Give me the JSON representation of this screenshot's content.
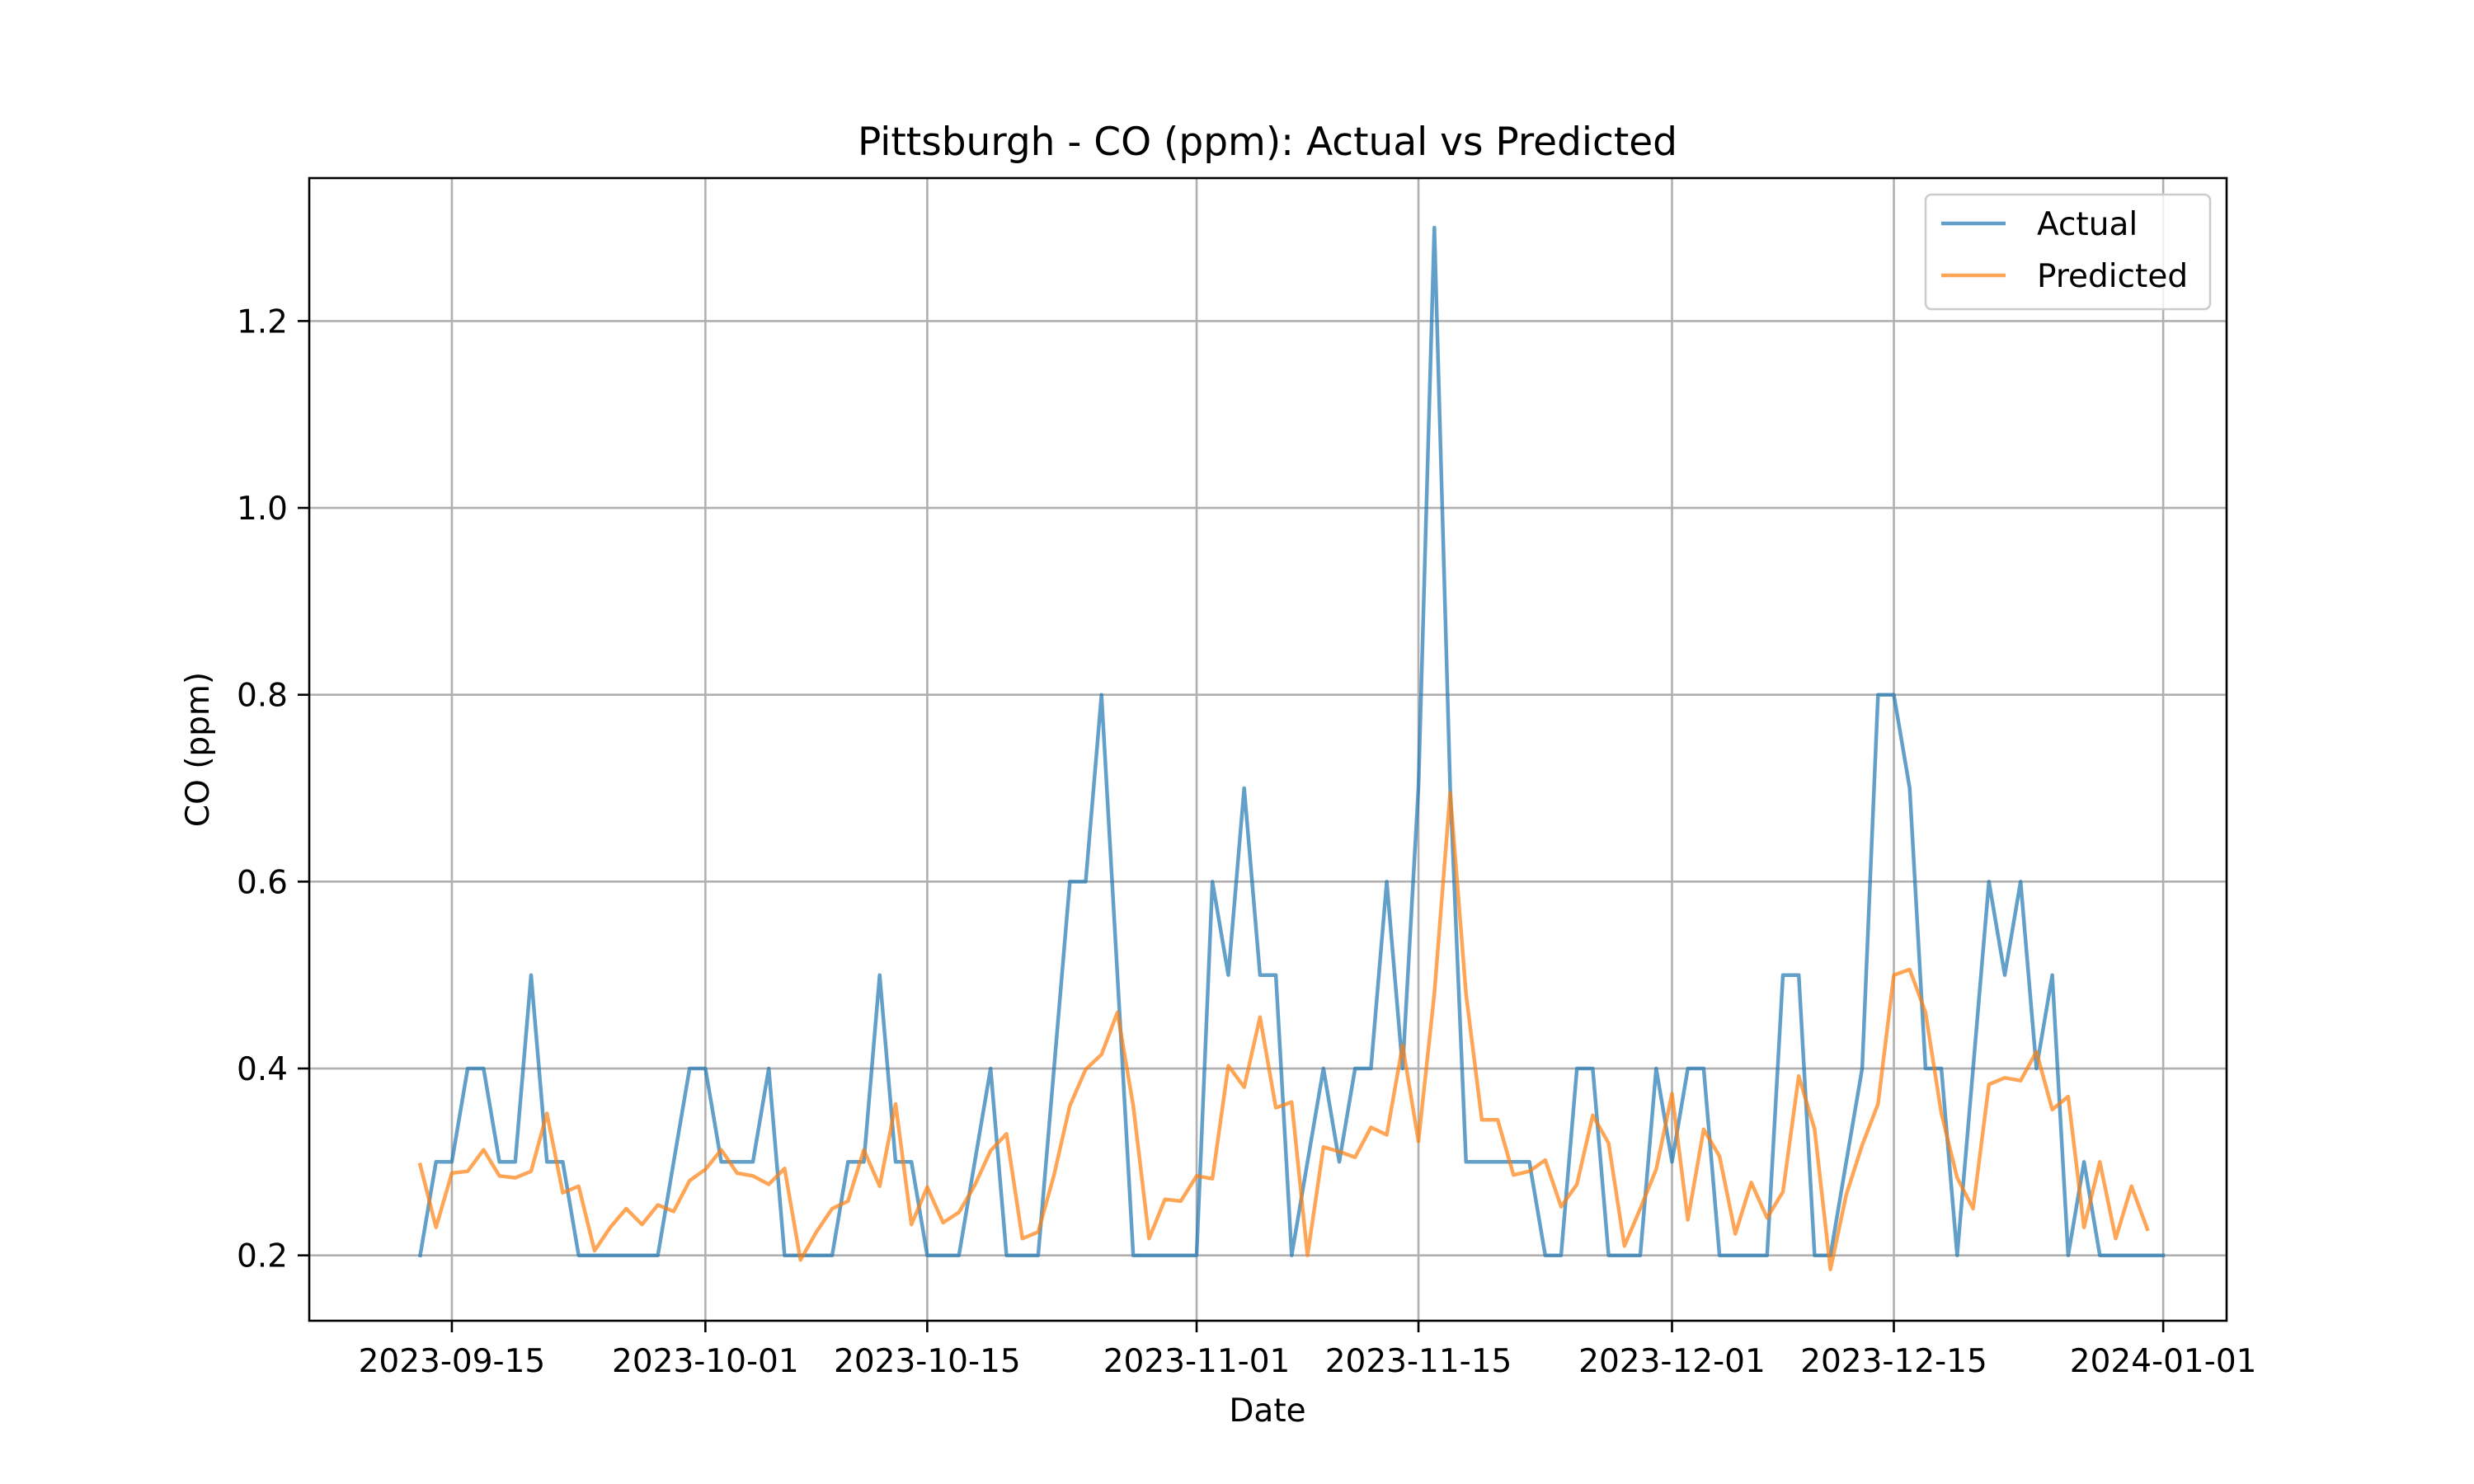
{
  "chart_data": {
    "type": "line",
    "title": "Pittsburgh - CO (ppm): Actual vs Predicted",
    "xlabel": "Date",
    "ylabel": "CO (ppm)",
    "x_start": "2023-09-13",
    "xlim": [
      "2023-09-06",
      "2024-01-05"
    ],
    "ylim": [
      0.13,
      1.353
    ],
    "x_ticks": [
      "2023-09-15",
      "2023-10-01",
      "2023-10-15",
      "2023-11-01",
      "2023-11-15",
      "2023-12-01",
      "2023-12-15",
      "2024-01-01"
    ],
    "y_ticks": [
      0.2,
      0.4,
      0.6,
      0.8,
      1.0,
      1.2
    ],
    "y_tick_labels": [
      "0.2",
      "0.4",
      "0.6",
      "0.8",
      "1.0",
      "1.2"
    ],
    "grid": true,
    "legend_position": "upper right",
    "series": [
      {
        "name": "Actual",
        "color": "#1f77b4",
        "values": [
          0.2,
          0.3,
          0.3,
          0.4,
          0.4,
          0.3,
          0.3,
          0.5,
          0.3,
          0.3,
          0.2,
          0.2,
          0.2,
          0.2,
          0.2,
          0.2,
          0.3,
          0.4,
          0.4,
          0.3,
          0.3,
          0.3,
          0.4,
          0.2,
          0.2,
          0.2,
          0.2,
          0.3,
          0.3,
          0.5,
          0.3,
          0.3,
          0.2,
          0.2,
          0.2,
          0.3,
          0.4,
          0.2,
          0.2,
          0.2,
          0.4,
          0.6,
          0.6,
          0.8,
          0.5,
          0.2,
          0.2,
          0.2,
          0.2,
          0.2,
          0.6,
          0.5,
          0.7,
          0.5,
          0.5,
          0.2,
          0.3,
          0.4,
          0.3,
          0.4,
          0.4,
          0.6,
          0.4,
          0.7,
          1.3,
          0.7,
          0.3,
          0.3,
          0.3,
          0.3,
          0.3,
          0.2,
          0.2,
          0.4,
          0.4,
          0.2,
          0.2,
          0.2,
          0.4,
          0.3,
          0.4,
          0.4,
          0.2,
          0.2,
          0.2,
          0.2,
          0.5,
          0.5,
          0.2,
          0.2,
          0.3,
          0.4,
          0.8,
          0.8,
          0.7,
          0.4,
          0.4,
          0.2,
          0.4,
          0.6,
          0.5,
          0.6,
          0.4,
          0.5,
          0.2,
          0.3,
          0.2,
          0.2,
          0.2,
          0.2,
          0.2
        ]
      },
      {
        "name": "Predicted",
        "color": "#ff7f0e",
        "values": [
          0.297,
          0.23,
          0.288,
          0.29,
          0.313,
          0.285,
          0.283,
          0.29,
          0.352,
          0.267,
          0.274,
          0.205,
          0.23,
          0.25,
          0.233,
          0.254,
          0.247,
          0.28,
          0.292,
          0.313,
          0.288,
          0.285,
          0.276,
          0.293,
          0.195,
          0.225,
          0.25,
          0.258,
          0.313,
          0.274,
          0.362,
          0.233,
          0.273,
          0.235,
          0.246,
          0.275,
          0.312,
          0.33,
          0.218,
          0.225,
          0.286,
          0.36,
          0.399,
          0.415,
          0.46,
          0.36,
          0.218,
          0.26,
          0.258,
          0.285,
          0.282,
          0.403,
          0.38,
          0.455,
          0.358,
          0.364,
          0.2,
          0.316,
          0.311,
          0.305,
          0.337,
          0.329,
          0.425,
          0.322,
          0.48,
          0.695,
          0.48,
          0.345,
          0.345,
          0.286,
          0.29,
          0.302,
          0.252,
          0.276,
          0.35,
          0.32,
          0.21,
          0.25,
          0.292,
          0.373,
          0.238,
          0.335,
          0.306,
          0.223,
          0.278,
          0.24,
          0.268,
          0.392,
          0.335,
          0.185,
          0.265,
          0.318,
          0.362,
          0.5,
          0.506,
          0.46,
          0.352,
          0.283,
          0.25,
          0.383,
          0.39,
          0.387,
          0.418,
          0.356,
          0.37,
          0.23,
          0.3,
          0.218,
          0.274,
          0.228
        ]
      }
    ]
  }
}
